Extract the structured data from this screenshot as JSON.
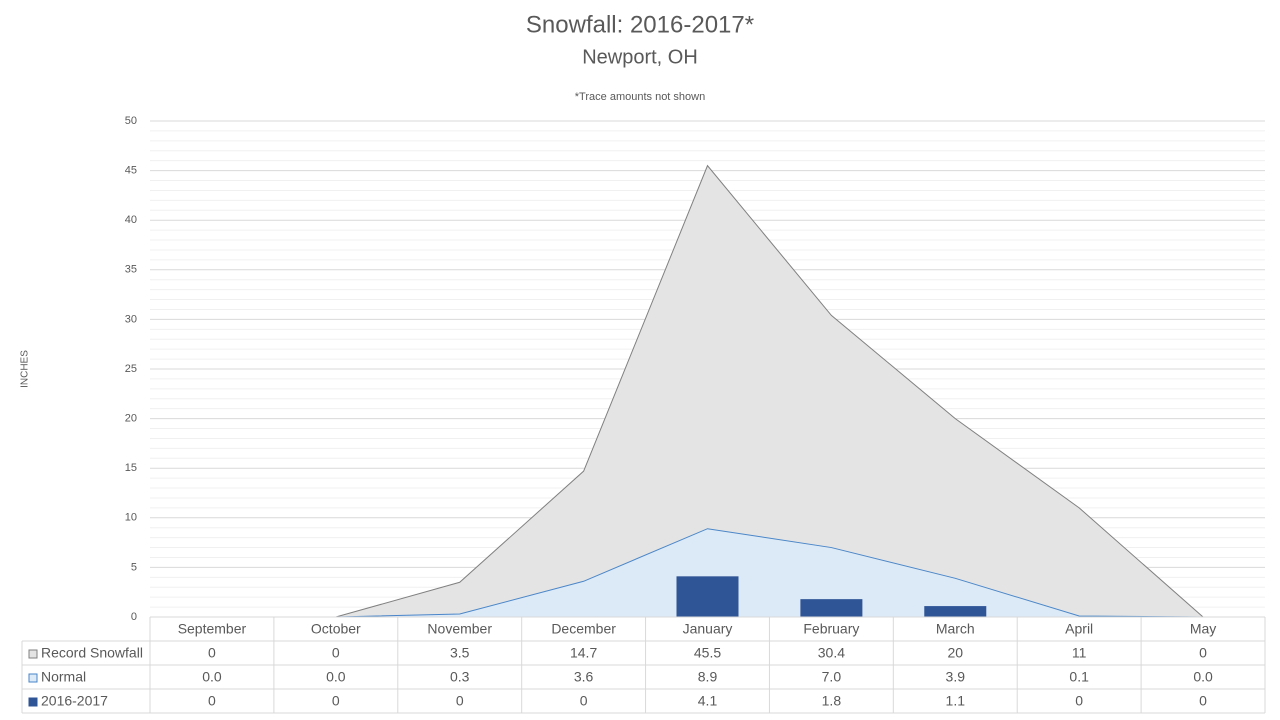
{
  "chart_data": {
    "type": "combo",
    "title": "Snowfall: 2016-2017*",
    "subtitle": "Newport, OH",
    "annotation": "*Trace amounts not shown",
    "y_label": "INCHES",
    "categories": [
      "September",
      "October",
      "November",
      "December",
      "January",
      "February",
      "March",
      "April",
      "May"
    ],
    "series": [
      {
        "name": "Record Snowfall",
        "type": "area",
        "color": "#e4e4e4",
        "line_color": "#808080",
        "values": [
          0,
          0,
          3.5,
          14.7,
          45.5,
          30.4,
          20,
          11,
          0
        ]
      },
      {
        "name": "Normal",
        "type": "area",
        "color": "#dce9f6",
        "line_color": "#4a86c8",
        "values": [
          0,
          0,
          0.3,
          3.6,
          8.9,
          7.0,
          3.9,
          0.1,
          0
        ],
        "value_labels": [
          "0.0",
          "0.0",
          "0.3",
          "3.6",
          "8.9",
          "7.0",
          "3.9",
          "0.1",
          "0.0"
        ]
      },
      {
        "name": "2016-2017",
        "type": "bar",
        "color": "#2f5597",
        "values": [
          0,
          0,
          0,
          0,
          4.1,
          1.8,
          1.1,
          0,
          0
        ]
      }
    ],
    "ylim": [
      0,
      50
    ],
    "yticks": [
      0,
      5,
      10,
      15,
      20,
      25,
      30,
      35,
      40,
      45,
      50
    ],
    "grid": true,
    "data_table": true
  }
}
